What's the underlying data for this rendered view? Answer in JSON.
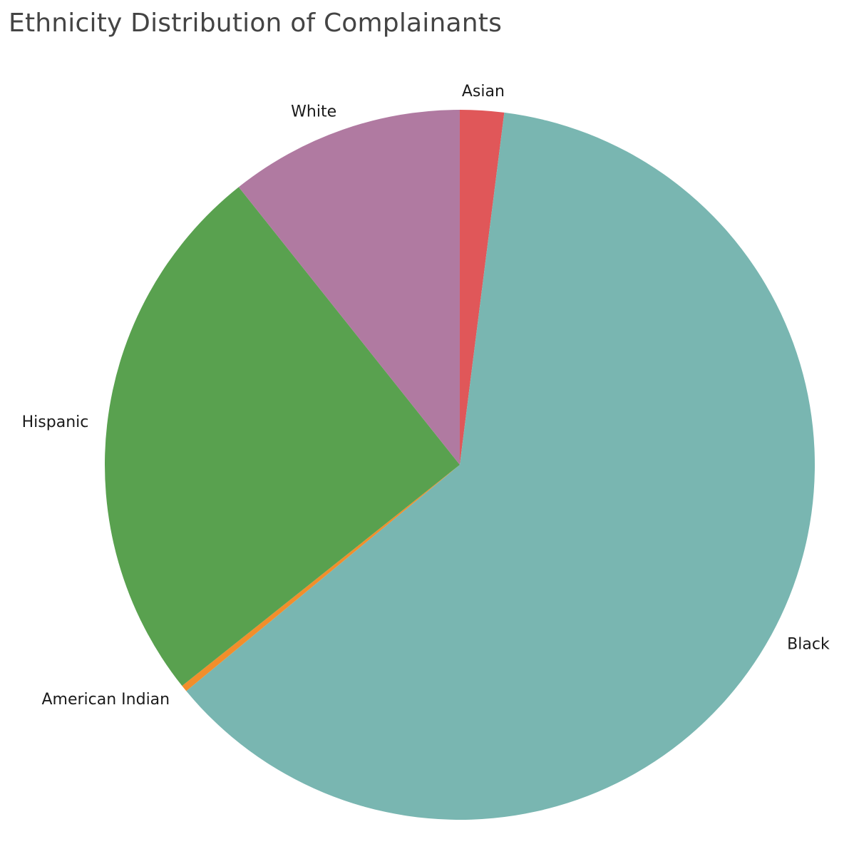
{
  "chart_data": {
    "type": "pie",
    "title": "Ethnicity Distribution of Complainants",
    "start_angle_deg": 0,
    "direction": "clockwise",
    "slices": [
      {
        "label": "Asian",
        "value": 2.0,
        "color": "#e05759"
      },
      {
        "label": "Black",
        "value": 62.0,
        "color": "#79b6b1"
      },
      {
        "label": "American Indian",
        "value": 0.3,
        "color": "#f28e2b"
      },
      {
        "label": "Hispanic",
        "value": 25.0,
        "color": "#59a14f"
      },
      {
        "label": "White",
        "value": 10.7,
        "color": "#b07aa1"
      }
    ]
  }
}
